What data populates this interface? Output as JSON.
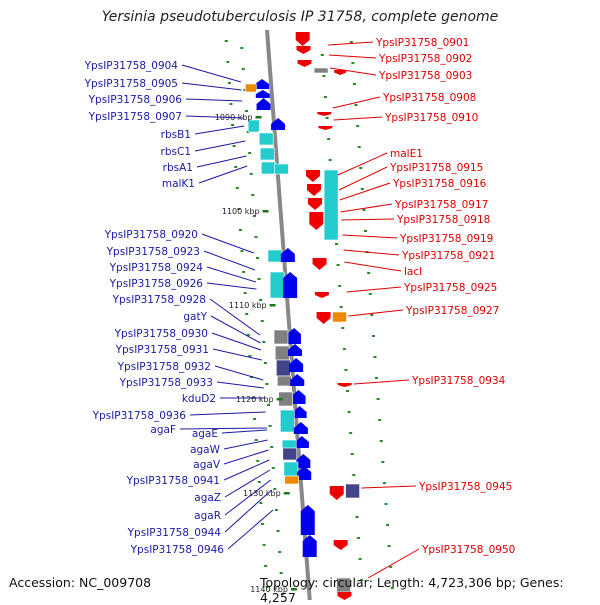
{
  "title": "Yersinia pseudotuberculosis IP 31758, complete genome",
  "accession": "Accession: NC_009708",
  "topology": "Topology: circular; Length: 4,723,306 bp; Genes: 4,257",
  "colors": {
    "forward": "#0000ee",
    "reverse": "#ee0000",
    "rna": "#22cccc",
    "other": "#ee8800",
    "pseudo_dark": "#44448a",
    "grey": "#808080",
    "backbone": "#888888"
  },
  "scale": [
    "1090 kbp",
    "1100 kbp",
    "1110 kbp",
    "1120 kbp",
    "1130 kbp",
    "1140 kbp"
  ],
  "left_labels": [
    "YpsIP31758_0904",
    "YpsIP31758_0905",
    "YpsIP31758_0906",
    "YpsIP31758_0907",
    "rbsB1",
    "rbsC1",
    "rbsA1",
    "malK1",
    "YpsIP31758_0920",
    "YpsIP31758_0923",
    "YpsIP31758_0924",
    "YpsIP31758_0926",
    "YpsIP31758_0928",
    "gatY",
    "YpsIP31758_0930",
    "YpsIP31758_0931",
    "YpsIP31758_0932",
    "YpsIP31758_0933",
    "kduD2",
    "YpsIP31758_0936",
    "agaF",
    "agaE",
    "agaW",
    "agaV",
    "YpsIP31758_0941",
    "agaZ",
    "agaR",
    "YpsIP31758_0944",
    "YpsIP31758_0946"
  ],
  "right_labels": [
    "YpsIP31758_0901",
    "YpsIP31758_0902",
    "YpsIP31758_0903",
    "YpsIP31758_0908",
    "YpsIP31758_0910",
    "malE1",
    "YpsIP31758_0915",
    "YpsIP31758_0916",
    "YpsIP31758_0917",
    "YpsIP31758_0918",
    "YpsIP31758_0919",
    "YpsIP31758_0921",
    "lacI",
    "YpsIP31758_0925",
    "YpsIP31758_0927",
    "YpsIP31758_0934",
    "YpsIP31758_0945",
    "YpsIP31758_0950"
  ]
}
